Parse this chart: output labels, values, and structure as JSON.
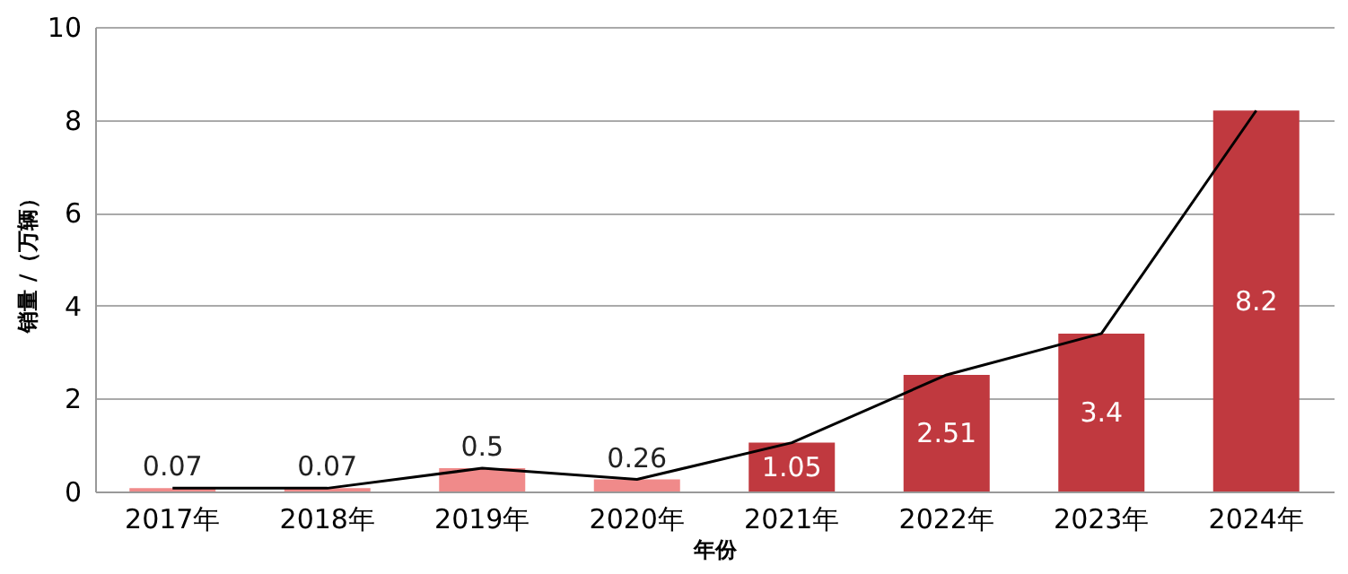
{
  "chart_data": {
    "type": "bar",
    "xlabel": "年份",
    "ylabel": "销量 /（万辆）",
    "categories": [
      "2017年",
      "2018年",
      "2019年",
      "2020年",
      "2021年",
      "2022年",
      "2023年",
      "2024年"
    ],
    "series": [
      {
        "values": [
          0.07,
          0.07,
          0.5,
          0.26,
          1.05,
          2.51,
          3.4,
          8.2
        ],
        "colors": [
          "#f08a8a",
          "#f08a8a",
          "#f08a8a",
          "#f08a8a",
          "#c0393f",
          "#c0393f",
          "#c0393f",
          "#c0393f"
        ],
        "data_labels": true
      },
      {
        "type": "line",
        "color": "#000000",
        "values": [
          0.07,
          0.07,
          0.5,
          0.26,
          1.05,
          2.51,
          3.4,
          8.2
        ]
      }
    ],
    "ylim": [
      0,
      10
    ],
    "yticks": [
      0,
      2,
      4,
      6,
      8,
      10
    ],
    "grid": "y"
  }
}
